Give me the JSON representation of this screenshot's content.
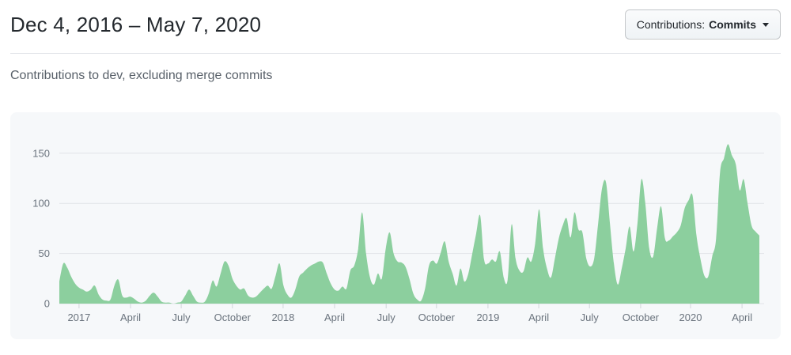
{
  "header": {
    "title": "Dec 4, 2016 – May 7, 2020",
    "filter_button": {
      "label_prefix": "Contributions:",
      "selected_value": "Commits",
      "icon": "caret-down-icon"
    }
  },
  "subtitle": "Contributions to dev, excluding merge commits",
  "colors": {
    "area_fill": "#8ccf9e",
    "panel_bg": "#f6f8fa",
    "gridline": "#e1e4e8",
    "tick_mark": "#d1d5da",
    "axis_label": "#6a737d",
    "title_text": "#24292e",
    "subtitle_text": "#586069",
    "divider": "#e1e4e8"
  },
  "chart_data": {
    "type": "area",
    "title": "Contributions to dev, excluding merge commits",
    "series_name": "Commits per week",
    "x_unit": "week",
    "x_start_date": "Dec 4, 2016",
    "x_end_date": "May 7, 2020",
    "ylim": [
      0,
      170
    ],
    "y_ticks": [
      0,
      50,
      100,
      150
    ],
    "grid": true,
    "legend": false,
    "x_ticks": [
      {
        "label": "2017",
        "week": 5.0
      },
      {
        "label": "April",
        "week": 18.1
      },
      {
        "label": "July",
        "week": 31.0
      },
      {
        "label": "October",
        "week": 44.0
      },
      {
        "label": "2018",
        "week": 56.9
      },
      {
        "label": "April",
        "week": 70.0
      },
      {
        "label": "July",
        "week": 83.1
      },
      {
        "label": "October",
        "week": 95.9
      },
      {
        "label": "2019",
        "week": 109.0
      },
      {
        "label": "April",
        "week": 121.9
      },
      {
        "label": "July",
        "week": 134.8
      },
      {
        "label": "October",
        "week": 147.8
      },
      {
        "label": "2020",
        "week": 160.5
      },
      {
        "label": "April",
        "week": 173.6
      }
    ],
    "values": [
      22,
      40,
      36,
      27,
      20,
      16,
      14,
      12,
      14,
      18,
      9,
      4,
      3,
      4,
      18,
      24,
      8,
      6,
      7,
      5,
      2,
      1,
      3,
      8,
      11,
      7,
      2,
      1,
      1,
      0,
      1,
      2,
      8,
      14,
      8,
      2,
      1,
      2,
      10,
      23,
      17,
      30,
      42,
      38,
      25,
      18,
      14,
      15,
      8,
      6,
      7,
      11,
      15,
      18,
      15,
      28,
      40,
      18,
      9,
      6,
      14,
      27,
      31,
      35,
      38,
      40,
      42,
      41,
      30,
      20,
      14,
      13,
      17,
      15,
      33,
      38,
      55,
      91,
      50,
      26,
      19,
      30,
      25,
      55,
      71,
      50,
      42,
      41,
      37,
      25,
      10,
      4,
      3,
      15,
      38,
      43,
      40,
      51,
      62,
      42,
      30,
      18,
      35,
      22,
      30,
      50,
      70,
      88,
      44,
      40,
      44,
      42,
      52,
      26,
      24,
      79,
      45,
      33,
      32,
      46,
      42,
      60,
      94,
      55,
      35,
      26,
      45,
      65,
      78,
      85,
      66,
      91,
      74,
      71,
      45,
      37,
      45,
      80,
      115,
      121,
      80,
      40,
      19,
      35,
      55,
      77,
      52,
      80,
      124,
      100,
      55,
      47,
      75,
      97,
      65,
      63,
      67,
      71,
      78,
      95,
      103,
      108,
      68,
      45,
      28,
      27,
      47,
      65,
      131,
      145,
      159,
      148,
      139,
      113,
      124,
      100,
      78,
      72,
      68
    ]
  }
}
